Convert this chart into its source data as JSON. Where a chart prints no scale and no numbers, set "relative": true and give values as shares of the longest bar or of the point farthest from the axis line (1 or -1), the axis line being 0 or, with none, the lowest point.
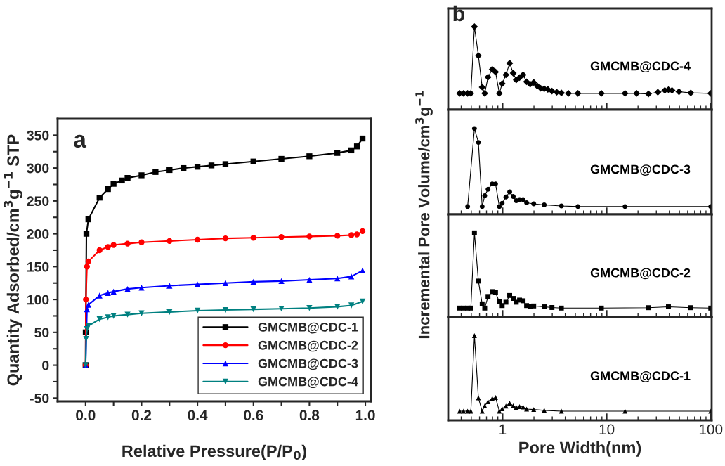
{
  "chart_data": [
    {
      "type": "line",
      "xlabel": "Relative Pressure(P/P$_{0}$)",
      "ylabel": "Quantity Adsorbed/cm$^{3}$g$^{−1}$ STP",
      "annotations": [
        "a"
      ],
      "xlim": [
        -0.1,
        1.02
      ],
      "ylim": [
        -55,
        375
      ],
      "xticks": [
        {
          "value": 0,
          "label": "0.0"
        },
        {
          "value": 0.1,
          "label": null
        },
        {
          "value": 0.2,
          "label": "0.2"
        },
        {
          "value": 0.3,
          "label": null
        },
        {
          "value": 0.4,
          "label": "0.4"
        },
        {
          "value": 0.5,
          "label": null
        },
        {
          "value": 0.6,
          "label": "0.6"
        },
        {
          "value": 0.7,
          "label": null
        },
        {
          "value": 0.8,
          "label": "0.8"
        },
        {
          "value": 0.9,
          "label": null
        },
        {
          "value": 1,
          "label": "1.0"
        }
      ],
      "yticks": [
        -50,
        {
          "value": -25,
          "label": null
        },
        0,
        {
          "value": 25,
          "label": null
        },
        50,
        {
          "value": 75,
          "label": null
        },
        100,
        {
          "value": 125,
          "label": null
        },
        150,
        {
          "value": 175,
          "label": null
        },
        200,
        {
          "value": 225,
          "label": null
        },
        250,
        {
          "value": 275,
          "label": null
        },
        300,
        {
          "value": 325,
          "label": null
        },
        350
      ],
      "legend": "bottom right",
      "grid": false,
      "series": [
        {
          "name": "GMCMB@CDC-1",
          "color": "#000000",
          "marker": "square",
          "x": [
            0.0,
            0.0005,
            0.001,
            0.003,
            0.01,
            0.05,
            0.08,
            0.1,
            0.13,
            0.15,
            0.2,
            0.25,
            0.3,
            0.35,
            0.4,
            0.45,
            0.5,
            0.6,
            0.7,
            0.8,
            0.9,
            0.95,
            0.97,
            0.99
          ],
          "values": [
            0,
            50,
            null,
            200,
            222,
            255,
            268,
            276,
            281,
            285,
            289,
            294,
            297,
            300,
            302,
            304,
            306,
            310,
            314,
            318,
            323,
            327,
            333,
            345
          ]
        },
        {
          "name": "GMCMB@CDC-2",
          "color": "#ff0000",
          "marker": "circle",
          "x": [
            0.0,
            0.001,
            0.005,
            0.01,
            0.05,
            0.08,
            0.1,
            0.15,
            0.2,
            0.3,
            0.4,
            0.5,
            0.6,
            0.7,
            0.8,
            0.9,
            0.95,
            0.97,
            0.99
          ],
          "values": [
            0,
            100,
            150,
            158,
            175,
            180,
            183,
            185,
            187,
            189,
            191,
            193,
            194,
            195,
            196,
            197,
            198,
            199,
            204
          ]
        },
        {
          "name": "GMCMB@CDC-3",
          "color": "#0000ff",
          "marker": "triangle",
          "x": [
            0.0,
            0.002,
            0.005,
            0.01,
            0.05,
            0.08,
            0.1,
            0.15,
            0.2,
            0.3,
            0.4,
            0.5,
            0.6,
            0.7,
            0.8,
            0.9,
            0.95,
            0.99
          ],
          "values": [
            0,
            null,
            85,
            92,
            106,
            110,
            112,
            116,
            118,
            121,
            123,
            125,
            127,
            128,
            130,
            132,
            135,
            144
          ]
        },
        {
          "name": "GMCMB@CDC-4",
          "color": "#008080",
          "marker": "triangle_down",
          "x": [
            0.0,
            0.002,
            0.005,
            0.01,
            0.05,
            0.08,
            0.1,
            0.15,
            0.2,
            0.3,
            0.4,
            0.5,
            0.6,
            0.7,
            0.8,
            0.9,
            0.95,
            0.99
          ],
          "values": [
            0,
            40,
            55,
            60,
            70,
            73,
            75,
            77,
            79,
            81,
            83,
            84,
            85,
            86,
            87,
            89,
            91,
            97
          ]
        }
      ]
    },
    {
      "type": "line",
      "relative": true,
      "log": "x",
      "ylabel": "Incremental Pore Volume/cm$^{3}$g$^{−1}$",
      "annotations": [
        "b"
      ],
      "xlim": [
        0.3,
        102
      ],
      "xticks": [
        1,
        10,
        100
      ],
      "tick_labels": false,
      "series": [
        {
          "name": "GMCMB@CDC-4",
          "color": "#000000",
          "marker": "diamond",
          "x": [
            0.386,
            0.421,
            0.461,
            0.495,
            0.536,
            0.585,
            0.636,
            0.673,
            0.724,
            0.795,
            0.855,
            0.93,
            0.99,
            1.076,
            1.169,
            1.264,
            1.352,
            1.455,
            1.573,
            1.7,
            1.84,
            1.99,
            2.15,
            2.32,
            2.51,
            2.72,
            2.98,
            3.31,
            3.67,
            4.29,
            5.29,
            8.89,
            15.0,
            19.4,
            25.2,
            31.0,
            36.2,
            39.2,
            42.4,
            49.5,
            64.3,
            100
          ],
          "values": [
            0.196,
            0.196,
            0.196,
            0.196,
            1,
            0.65,
            0.272,
            0.196,
            0.392,
            0.485,
            0.454,
            0.196,
            0.314,
            0.42,
            0.56,
            0.44,
            0.359,
            0.387,
            0.42,
            0.336,
            0.308,
            0.328,
            0.286,
            0.258,
            0.252,
            0.244,
            0.224,
            0.21,
            0.202,
            0.196,
            0.196,
            0.196,
            0.196,
            0.196,
            0.19,
            0.21,
            0.232,
            0.241,
            0.232,
            0.216,
            0.202,
            0.196
          ]
        }
      ]
    },
    {
      "type": "line",
      "relative": true,
      "log": "x",
      "xlim": [
        0.3,
        102
      ],
      "xticks": [
        1,
        10,
        100
      ],
      "tick_labels": false,
      "series": [
        {
          "name": "GMCMB@CDC-3",
          "color": "#000000",
          "marker": "circle",
          "x": [
            0.461,
            0.536,
            0.585,
            0.636,
            0.673,
            0.724,
            0.795,
            0.855,
            0.93,
            0.99,
            1.076,
            1.169,
            1.264,
            1.352,
            1.455,
            1.573,
            1.7,
            1.99,
            2.51,
            3.67,
            5.29,
            15.0,
            100
          ],
          "values": [
            0.091,
            1,
            0.838,
            0.091,
            0.218,
            0.292,
            0.355,
            0.355,
            0.091,
            0.13,
            0.203,
            0.262,
            0.208,
            0.159,
            0.172,
            0.172,
            0.135,
            0.123,
            0.11,
            0.098,
            0.091,
            0.091,
            0.091
          ]
        }
      ]
    },
    {
      "type": "line",
      "relative": true,
      "log": "x",
      "xlim": [
        0.3,
        102
      ],
      "xticks": [
        1,
        10,
        100
      ],
      "tick_labels": false,
      "series": [
        {
          "name": "GMCMB@CDC-2",
          "color": "#000000",
          "marker": "square",
          "x": [
            0.386,
            0.421,
            0.461,
            0.495,
            0.536,
            0.585,
            0.636,
            0.673,
            0.724,
            0.795,
            0.855,
            0.93,
            0.99,
            1.076,
            1.169,
            1.264,
            1.352,
            1.455,
            1.573,
            1.7,
            1.84,
            1.99,
            2.51,
            2.98,
            3.67,
            8.89,
            25.2,
            39.2,
            64.3,
            100
          ],
          "values": [
            0.106,
            0.106,
            0.106,
            0.106,
            1,
            0.427,
            0.156,
            0.106,
            0.244,
            0.302,
            0.289,
            0.181,
            0.136,
            0.176,
            0.256,
            0.221,
            0.176,
            0.201,
            0.193,
            0.136,
            0.126,
            0.131,
            0.121,
            0.113,
            0.106,
            0.106,
            0.111,
            0.121,
            0.111,
            0.106
          ]
        }
      ]
    },
    {
      "type": "line",
      "relative": true,
      "log": "x",
      "xlabel": "Pore Width(nm)",
      "xlim": [
        0.3,
        102
      ],
      "xticks": [
        1,
        10,
        100
      ],
      "tick_labels": "x",
      "series": [
        {
          "name": "GMCMB@CDC-1",
          "color": "#000000",
          "marker": "triangle",
          "x": [
            0.386,
            0.421,
            0.461,
            0.495,
            0.536,
            0.585,
            0.636,
            0.673,
            0.724,
            0.795,
            0.855,
            0.93,
            0.99,
            1.076,
            1.169,
            1.264,
            1.352,
            1.455,
            1.573,
            1.7,
            1.99,
            2.51,
            3.67,
            15.0,
            100
          ],
          "values": [
            0.1075,
            0.1075,
            0.1075,
            0.1075,
            1,
            0.265,
            0.1075,
            0.17,
            0.22,
            0.2575,
            0.27,
            0.1075,
            0.1375,
            0.1675,
            0.2025,
            0.17,
            0.1525,
            0.1625,
            0.1575,
            0.1325,
            0.1275,
            0.1175,
            0.1075,
            0.1075,
            0.1075
          ]
        }
      ]
    }
  ]
}
